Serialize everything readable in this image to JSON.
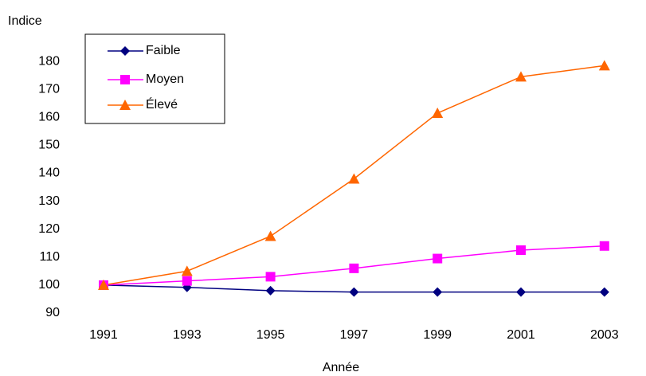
{
  "chart_data": {
    "type": "line",
    "y_label": "Indice",
    "x_label": "Année",
    "categories": [
      "1991",
      "1993",
      "1995",
      "1997",
      "1999",
      "2001",
      "2003"
    ],
    "series": [
      {
        "name": "Faible",
        "color": "#000080",
        "marker": "diamond",
        "values": [
          100,
          99.2,
          98,
          97.5,
          97.5,
          97.5,
          97.5
        ]
      },
      {
        "name": "Moyen",
        "color": "#ff00ff",
        "marker": "square",
        "values": [
          100,
          101.5,
          103,
          106,
          109.5,
          112.5,
          114
        ]
      },
      {
        "name": "Élevé",
        "color": "#ff6600",
        "marker": "triangle",
        "values": [
          100,
          105,
          117.5,
          138,
          161.5,
          174.5,
          178.5
        ]
      }
    ],
    "ylim": [
      90,
      190
    ],
    "yticks": [
      90,
      100,
      110,
      120,
      130,
      140,
      150,
      160,
      170,
      180
    ],
    "legend": "upper left"
  }
}
